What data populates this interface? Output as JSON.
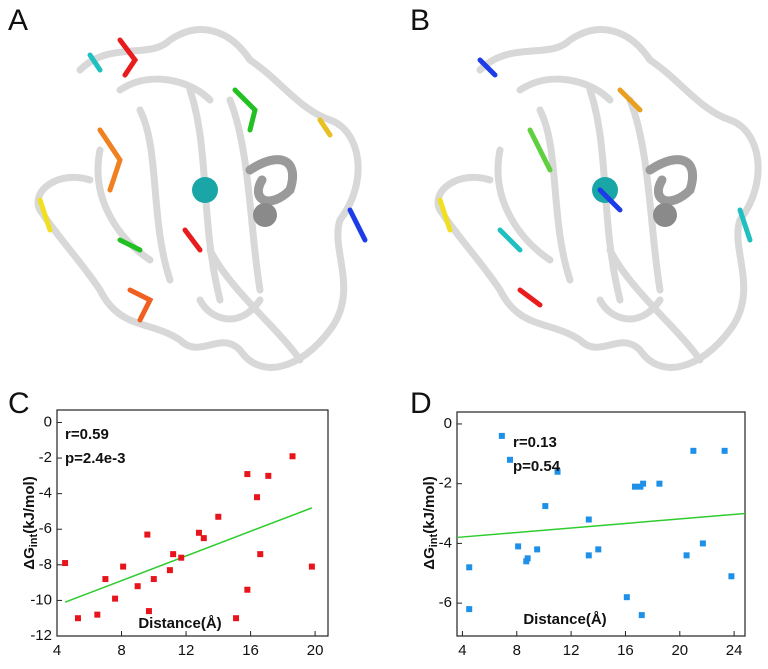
{
  "panel_labels": [
    "A",
    "B"
  ],
  "chart_data": [
    {
      "type": "scatter",
      "panel_label": "C",
      "annotations": [
        "r=0.59",
        "p=2.4e-3"
      ],
      "xlabel": "Distance(Å)",
      "ylabel": {
        "main": "ΔG",
        "sub": "int",
        "unit": "(kJ/mol)"
      },
      "xlim": [
        4,
        20.8
      ],
      "ylim": [
        -12,
        0.7
      ],
      "xticks": [
        4,
        8,
        12,
        16,
        20
      ],
      "yticks": [
        -12,
        -10,
        -8,
        -6,
        -4,
        -2,
        0
      ],
      "color": "#e8141c",
      "fit_color": "#2ecc2e",
      "x": [
        4.5,
        5.3,
        6.5,
        7.0,
        7.6,
        8.1,
        9.0,
        9.6,
        9.7,
        10.0,
        11.0,
        11.2,
        11.7,
        12.8,
        13.1,
        14.0,
        15.1,
        15.8,
        15.8,
        16.4,
        16.6,
        17.1,
        18.6,
        19.8
      ],
      "y": [
        -7.9,
        -11.0,
        -10.8,
        -8.8,
        -9.9,
        -8.1,
        -9.2,
        -6.3,
        -10.6,
        -8.8,
        -8.3,
        -7.4,
        -7.6,
        -6.2,
        -6.5,
        -5.3,
        -11.0,
        -2.9,
        -9.4,
        -4.2,
        -7.4,
        -3.0,
        -1.9,
        -8.1
      ],
      "fit_line": {
        "x": [
          4.5,
          19.8
        ],
        "y": [
          -10.1,
          -4.8
        ]
      }
    },
    {
      "type": "scatter",
      "panel_label": "D",
      "annotations": [
        "r=0.13",
        "p=0.54"
      ],
      "xlabel": "Distance(Å)",
      "ylabel": {
        "main": "ΔG",
        "sub": "int",
        "unit": "(kJ/mol)"
      },
      "xlim": [
        3.6,
        24.8
      ],
      "ylim": [
        -7.1,
        0.4
      ],
      "xticks": [
        4,
        8,
        12,
        16,
        20,
        24
      ],
      "yticks": [
        -6,
        -4,
        -2,
        0
      ],
      "color": "#1e90e8",
      "fit_color": "#2ecc2e",
      "x": [
        4.5,
        4.5,
        6.9,
        7.5,
        8.1,
        8.7,
        8.8,
        9.5,
        10.1,
        11.0,
        13.3,
        13.3,
        14.0,
        16.1,
        16.7,
        17.1,
        17.2,
        17.3,
        18.5,
        20.5,
        21.0,
        21.7,
        23.3,
        23.8
      ],
      "y": [
        -4.8,
        -6.2,
        -0.4,
        -1.2,
        -4.1,
        -4.6,
        -4.5,
        -4.2,
        -2.75,
        -1.6,
        -3.2,
        -4.4,
        -4.2,
        -5.8,
        -2.1,
        -2.1,
        -6.4,
        -2.0,
        -2.0,
        -4.4,
        -0.9,
        -4.0,
        -0.9,
        -5.1
      ],
      "fit_line": {
        "x": [
          3.6,
          24.8
        ],
        "y": [
          -3.8,
          -3.0
        ]
      }
    }
  ]
}
